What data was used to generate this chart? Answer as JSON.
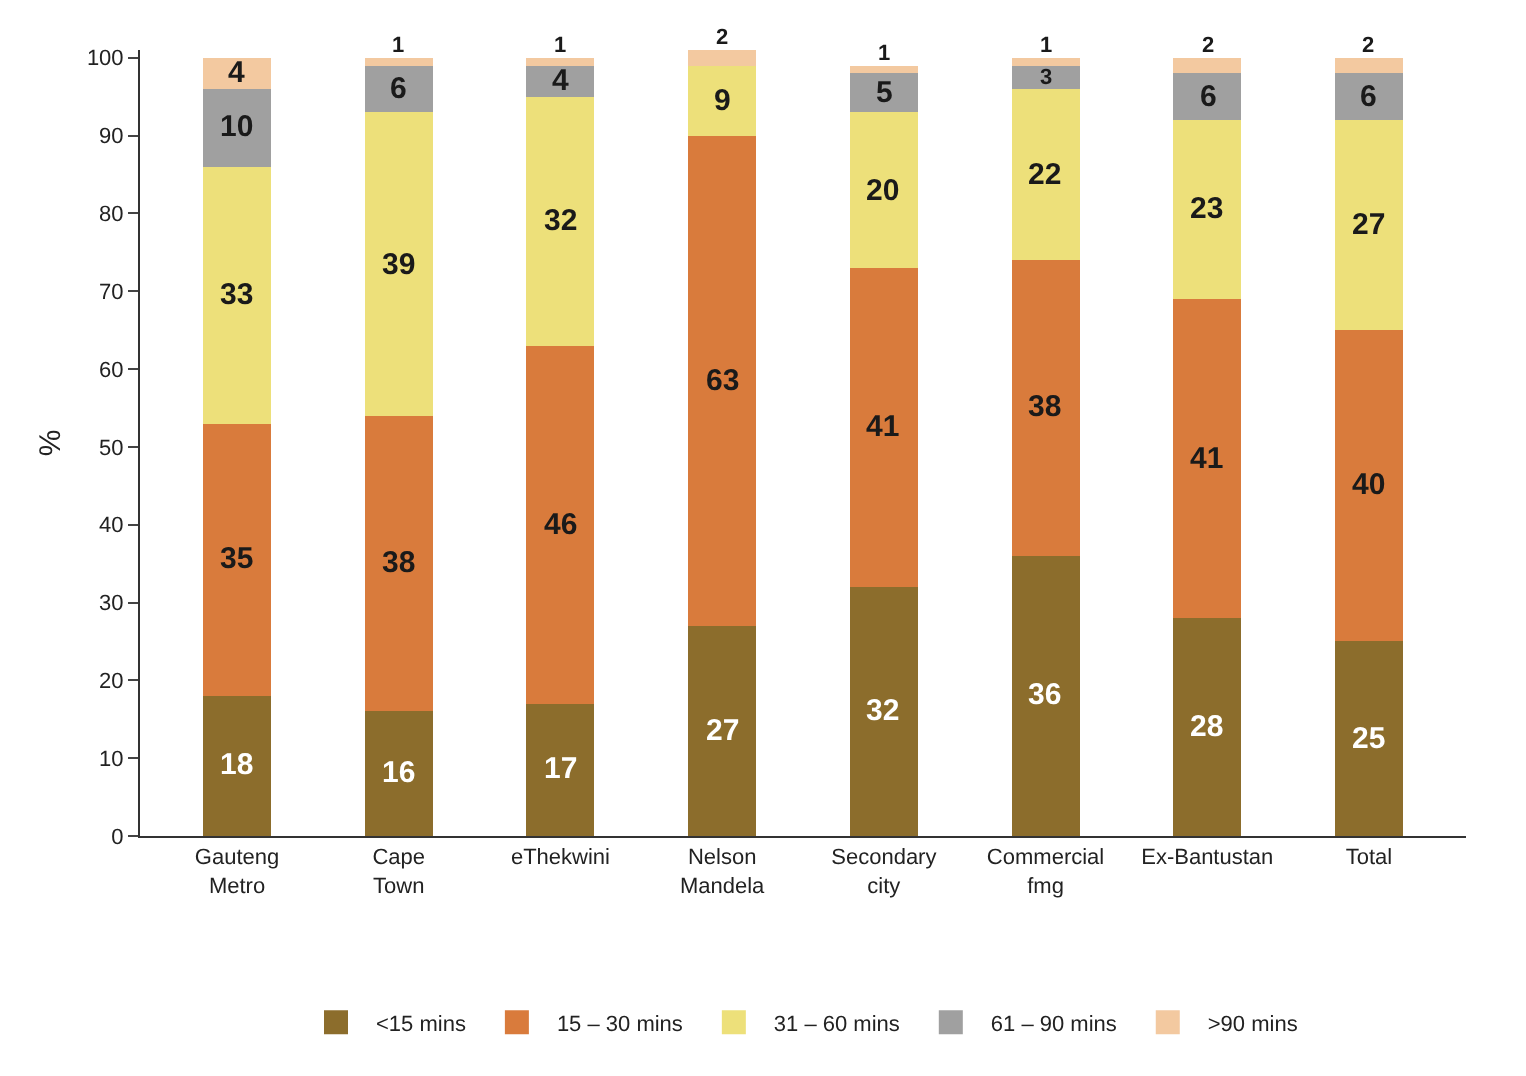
{
  "chart_data": {
    "type": "bar",
    "stacked": true,
    "ylabel": "%",
    "categories": [
      "Gauteng Metro",
      "Cape Town",
      "eThekwini",
      "Nelson Mandela",
      "Secondary city",
      "Commercial fmg",
      "Ex-Bantustan",
      "Total"
    ],
    "series": [
      {
        "name": "<15 mins",
        "color": "#8c6d2c",
        "values": [
          18,
          16,
          17,
          27,
          32,
          36,
          28,
          25
        ]
      },
      {
        "name": "15 – 30 mins",
        "color": "#d97b3c",
        "values": [
          35,
          38,
          46,
          63,
          41,
          38,
          41,
          40
        ]
      },
      {
        "name": "31 – 60 mins",
        "color": "#ede07a",
        "values": [
          33,
          39,
          32,
          9,
          20,
          22,
          23,
          27
        ]
      },
      {
        "name": "61 – 90 mins",
        "color": "#a0a0a0",
        "values": [
          10,
          6,
          4,
          null,
          5,
          3,
          6,
          6
        ]
      },
      {
        "name": ">90 mins",
        "color": "#f3c9a0",
        "values": [
          4,
          1,
          1,
          2,
          1,
          1,
          2,
          2
        ]
      }
    ],
    "ylim": [
      0,
      101
    ],
    "yticks": [
      0,
      10,
      20,
      30,
      40,
      50,
      60,
      70,
      80,
      90,
      100
    ],
    "grid": false,
    "legend": "bottom",
    "data_labels": true
  }
}
